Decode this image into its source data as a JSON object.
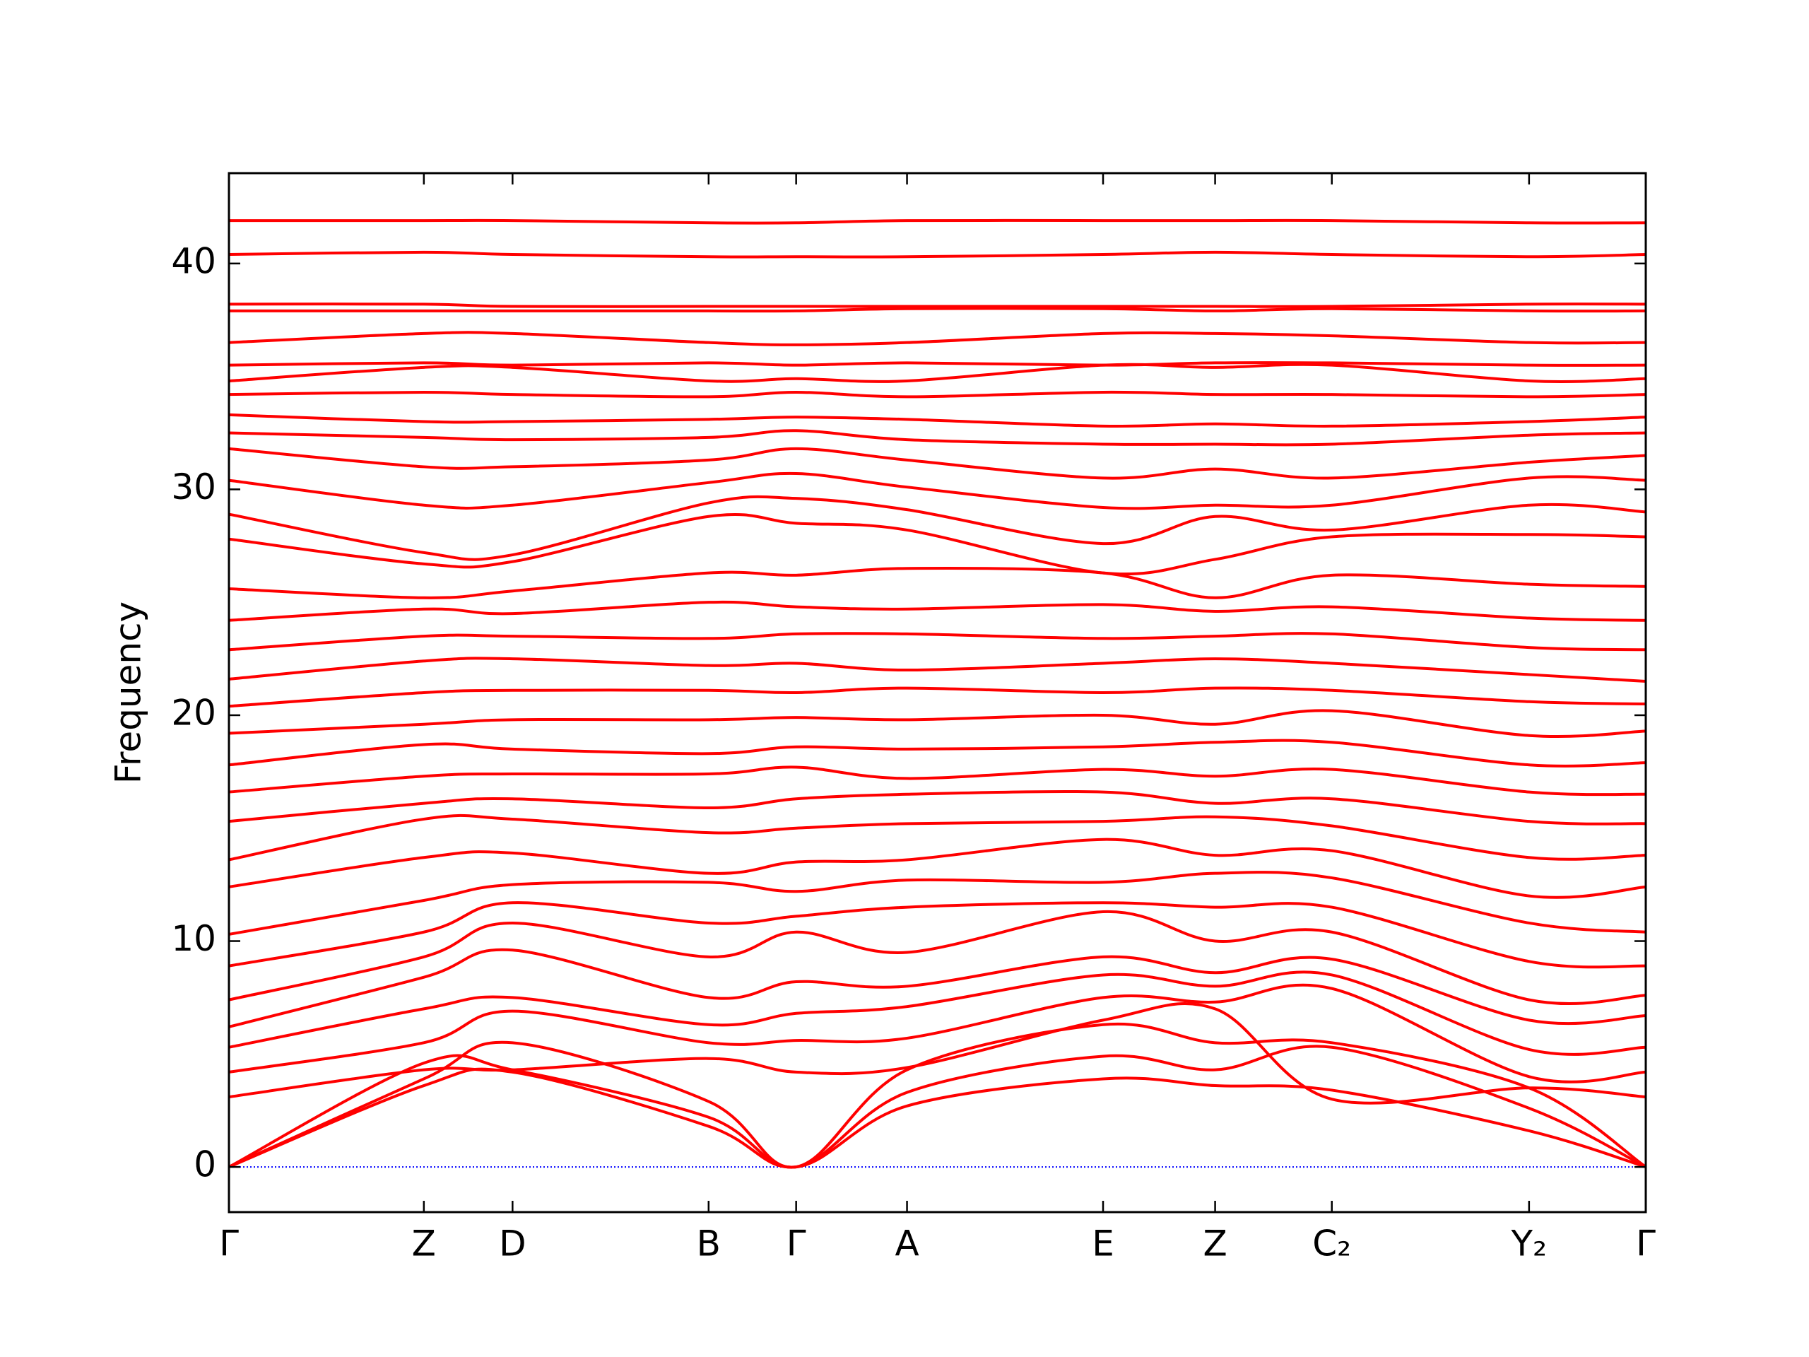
{
  "chart_data": {
    "type": "line",
    "ylabel": "Frequency",
    "color": "#ff0000",
    "zero_line": true,
    "zero_line_color": "#0000ff",
    "x": [
      0,
      1.67,
      2.43,
      4.11,
      4.86,
      5.81,
      7.49,
      8.45,
      9.45,
      11.14,
      12.14
    ],
    "xlim": [
      0,
      12.14
    ],
    "xticks": [
      {
        "value": 0,
        "label": "Γ"
      },
      {
        "value": 1.67,
        "label": "Z"
      },
      {
        "value": 2.43,
        "label": "D"
      },
      {
        "value": 4.11,
        "label": "B"
      },
      {
        "value": 4.86,
        "label": "Γ"
      },
      {
        "value": 5.81,
        "label": "A"
      },
      {
        "value": 7.49,
        "label": "E"
      },
      {
        "value": 8.45,
        "label": "Z"
      },
      {
        "value": 9.45,
        "label": "C₂"
      },
      {
        "value": 11.14,
        "label": "Y₂"
      },
      {
        "value": 12.14,
        "label": "Γ"
      }
    ],
    "ylim": [
      -2,
      44
    ],
    "yticks": [
      0,
      10,
      20,
      30,
      40
    ],
    "series": [
      {
        "values": [
          0,
          3.6,
          4.2,
          1.8,
          0,
          2.7,
          3.9,
          3.6,
          3.4,
          1.6,
          0
        ]
      },
      {
        "values": [
          0,
          4.6,
          4.3,
          2.2,
          0,
          3.3,
          4.9,
          4.3,
          5.3,
          2.6,
          0
        ]
      },
      {
        "values": [
          0,
          3.9,
          5.5,
          2.9,
          0,
          4.3,
          6.3,
          5.5,
          5.5,
          3.5,
          0
        ]
      },
      {
        "values": [
          3.1,
          4.3,
          4.3,
          4.8,
          4.2,
          4.4,
          6.5,
          7.0,
          3.0,
          3.5,
          3.1
        ]
      },
      {
        "values": [
          4.2,
          5.5,
          6.9,
          5.5,
          5.6,
          5.7,
          7.5,
          7.3,
          7.9,
          4.0,
          4.2
        ]
      },
      {
        "values": [
          5.3,
          7.0,
          7.5,
          6.3,
          6.8,
          7.1,
          8.5,
          8.0,
          8.5,
          5.2,
          5.3
        ]
      },
      {
        "values": [
          6.2,
          8.4,
          9.6,
          7.5,
          8.2,
          8.0,
          9.3,
          8.6,
          9.2,
          6.5,
          6.7
        ]
      },
      {
        "values": [
          7.4,
          9.3,
          10.8,
          9.3,
          10.4,
          9.5,
          11.3,
          10.0,
          10.4,
          7.4,
          7.6
        ]
      },
      {
        "values": [
          8.9,
          10.4,
          11.7,
          10.8,
          11.1,
          11.5,
          11.7,
          11.5,
          11.5,
          9.1,
          8.9
        ]
      },
      {
        "values": [
          10.3,
          11.8,
          12.5,
          12.6,
          12.2,
          12.7,
          12.6,
          13.0,
          12.8,
          10.8,
          10.4
        ]
      },
      {
        "values": [
          12.4,
          13.7,
          13.9,
          13.0,
          13.5,
          13.6,
          14.5,
          13.8,
          14.0,
          12.0,
          12.4
        ]
      },
      {
        "values": [
          13.6,
          15.4,
          15.4,
          14.8,
          15.0,
          15.2,
          15.3,
          15.5,
          15.1,
          13.7,
          13.8
        ]
      },
      {
        "values": [
          15.3,
          16.1,
          16.3,
          15.9,
          16.3,
          16.5,
          16.6,
          16.1,
          16.3,
          15.3,
          15.2
        ]
      },
      {
        "values": [
          16.6,
          17.3,
          17.4,
          17.4,
          17.7,
          17.2,
          17.6,
          17.3,
          17.6,
          16.6,
          16.5
        ]
      },
      {
        "values": [
          17.8,
          18.7,
          18.5,
          18.3,
          18.6,
          18.5,
          18.6,
          18.8,
          18.8,
          17.8,
          17.9
        ]
      },
      {
        "values": [
          19.2,
          19.6,
          19.8,
          19.8,
          19.9,
          19.8,
          20.0,
          19.6,
          20.2,
          19.1,
          19.3
        ]
      },
      {
        "values": [
          20.4,
          21.0,
          21.1,
          21.1,
          21.0,
          21.2,
          21.0,
          21.2,
          21.1,
          20.6,
          20.5
        ]
      },
      {
        "values": [
          21.6,
          22.4,
          22.5,
          22.2,
          22.3,
          22.0,
          22.3,
          22.5,
          22.3,
          21.8,
          21.5
        ]
      },
      {
        "values": [
          22.9,
          23.5,
          23.5,
          23.4,
          23.6,
          23.6,
          23.4,
          23.5,
          23.6,
          23.0,
          22.9
        ]
      },
      {
        "values": [
          24.2,
          24.7,
          24.5,
          25.0,
          24.8,
          24.7,
          24.9,
          24.6,
          24.8,
          24.3,
          24.2
        ]
      },
      {
        "values": [
          25.6,
          25.2,
          25.5,
          26.3,
          26.2,
          26.5,
          26.3,
          25.2,
          26.2,
          25.8,
          25.7
        ]
      },
      {
        "values": [
          27.8,
          26.7,
          26.8,
          28.8,
          28.5,
          28.2,
          26.3,
          26.9,
          27.9,
          28.0,
          27.9
        ]
      },
      {
        "values": [
          28.9,
          27.2,
          27.1,
          29.4,
          29.6,
          29.1,
          27.6,
          28.8,
          28.2,
          29.3,
          29.0
        ]
      },
      {
        "values": [
          30.4,
          29.3,
          29.3,
          30.3,
          30.7,
          30.1,
          29.2,
          29.3,
          29.3,
          30.5,
          30.4
        ]
      },
      {
        "values": [
          31.8,
          31.0,
          31.0,
          31.3,
          31.8,
          31.3,
          30.5,
          30.9,
          30.5,
          31.2,
          31.5
        ]
      },
      {
        "values": [
          32.5,
          32.3,
          32.2,
          32.3,
          32.6,
          32.2,
          32.0,
          32.0,
          32.0,
          32.4,
          32.5
        ]
      },
      {
        "values": [
          33.3,
          33.0,
          33.0,
          33.1,
          33.2,
          33.1,
          32.8,
          32.9,
          32.8,
          33.0,
          33.2
        ]
      },
      {
        "values": [
          34.2,
          34.3,
          34.2,
          34.1,
          34.3,
          34.1,
          34.3,
          34.2,
          34.2,
          34.1,
          34.2
        ]
      },
      {
        "values": [
          34.8,
          35.4,
          35.4,
          34.8,
          34.9,
          34.8,
          35.5,
          35.4,
          35.5,
          34.8,
          34.9
        ]
      },
      {
        "values": [
          35.5,
          35.6,
          35.5,
          35.6,
          35.5,
          35.6,
          35.5,
          35.6,
          35.6,
          35.5,
          35.5
        ]
      },
      {
        "values": [
          36.5,
          36.9,
          36.9,
          36.5,
          36.4,
          36.5,
          36.9,
          36.9,
          36.8,
          36.5,
          36.5
        ]
      },
      {
        "values": [
          37.9,
          37.9,
          37.9,
          37.9,
          37.9,
          38.0,
          38.0,
          37.9,
          38.0,
          37.9,
          37.9
        ]
      },
      {
        "values": [
          38.2,
          38.2,
          38.1,
          38.1,
          38.1,
          38.1,
          38.1,
          38.1,
          38.1,
          38.2,
          38.2
        ]
      },
      {
        "values": [
          40.4,
          40.5,
          40.4,
          40.3,
          40.3,
          40.3,
          40.4,
          40.5,
          40.4,
          40.3,
          40.4
        ]
      },
      {
        "values": [
          41.9,
          41.9,
          41.9,
          41.8,
          41.8,
          41.9,
          41.9,
          41.9,
          41.9,
          41.8,
          41.8
        ]
      }
    ]
  }
}
